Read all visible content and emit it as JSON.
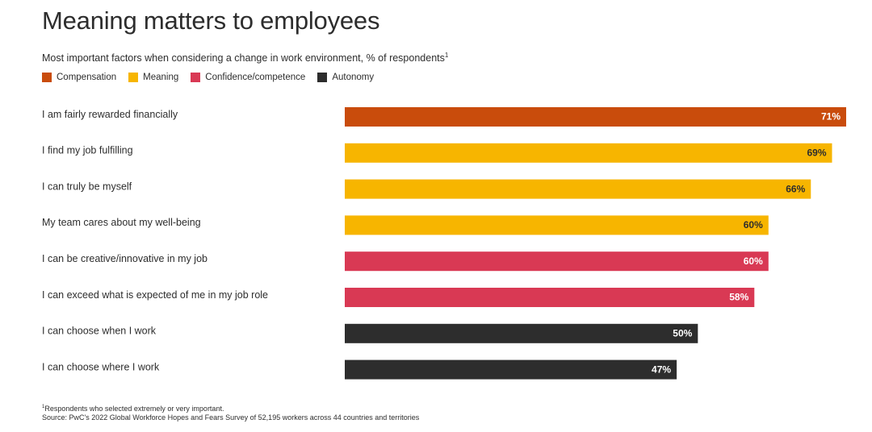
{
  "title": "Meaning matters to employees",
  "subtitle": "Most important factors when considering a change in work environment, % of respondents",
  "subtitle_footnote_mark": "1",
  "colors": {
    "compensation": "#c94c0c",
    "meaning": "#f7b500",
    "confidence": "#d93954",
    "autonomy": "#2d2d2d"
  },
  "chart_data": {
    "type": "bar",
    "orientation": "horizontal",
    "legend_placement": "top-left",
    "legend": [
      {
        "name": "Compensation",
        "color_key": "compensation"
      },
      {
        "name": "Meaning",
        "color_key": "meaning"
      },
      {
        "name": "Confidence/competence",
        "color_key": "confidence"
      },
      {
        "name": "Autonomy",
        "color_key": "autonomy"
      }
    ],
    "categories": [
      "I am fairly rewarded financially",
      "I find my job fulfilling",
      "I can truly be myself",
      "My team cares about my well-being",
      "I can be creative/innovative in my job",
      "I can exceed what is expected of me in my job role",
      "I can choose when I work",
      "I can choose where I work"
    ],
    "values": [
      71,
      69,
      66,
      60,
      60,
      58,
      50,
      47
    ],
    "value_labels": [
      "71%",
      "69%",
      "66%",
      "60%",
      "60%",
      "58%",
      "50%",
      "47%"
    ],
    "series_group": [
      "compensation",
      "meaning",
      "meaning",
      "meaning",
      "confidence",
      "confidence",
      "autonomy",
      "autonomy"
    ],
    "label_text_color": [
      "#ffffff",
      "#2d2d2d",
      "#2d2d2d",
      "#2d2d2d",
      "#ffffff",
      "#ffffff",
      "#ffffff",
      "#ffffff"
    ],
    "xlim": [
      0,
      71
    ],
    "grid": false
  },
  "footnotes": {
    "mark": "1",
    "note": "Respondents who selected extremely or very important.",
    "source": "Source: PwC's 2022 Global Workforce Hopes and Fears Survey of 52,195 workers across 44 countries and territories"
  }
}
